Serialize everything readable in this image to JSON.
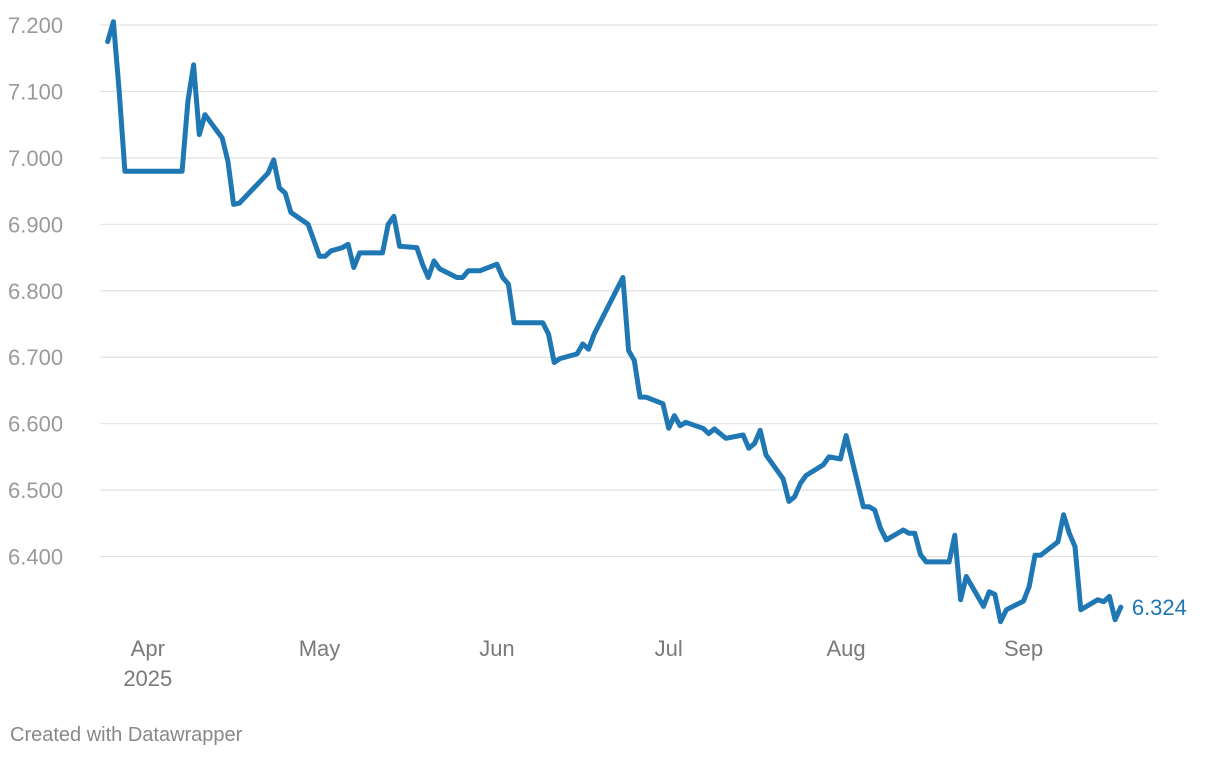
{
  "chart_data": {
    "type": "line",
    "title": "",
    "xlabel": "",
    "ylabel": "",
    "ylim": [
      6.3,
      7.2
    ],
    "xlim": [
      "2025-03-24",
      "2025-09-21"
    ],
    "grid": "horizontal",
    "y_ticks": [
      7.2,
      7.1,
      7.0,
      6.9,
      6.8,
      6.7,
      6.6,
      6.5,
      6.4
    ],
    "y_tick_labels": [
      "7.200",
      "7.100",
      "7.000",
      "6.900",
      "6.800",
      "6.700",
      "6.600",
      "6.500",
      "6.400"
    ],
    "x_ticks": [
      {
        "date": "2025-04-01",
        "label": "Apr",
        "sublabel": "2025"
      },
      {
        "date": "2025-05-01",
        "label": "May",
        "sublabel": ""
      },
      {
        "date": "2025-06-01",
        "label": "Jun",
        "sublabel": ""
      },
      {
        "date": "2025-07-01",
        "label": "Jul",
        "sublabel": ""
      },
      {
        "date": "2025-08-01",
        "label": "Aug",
        "sublabel": ""
      },
      {
        "date": "2025-09-01",
        "label": "Sep",
        "sublabel": ""
      }
    ],
    "series": [
      {
        "color": "#1f77b4",
        "end_label": "6.324",
        "points": [
          [
            "2025-03-25",
            7.175
          ],
          [
            "2025-03-26",
            7.205
          ],
          [
            "2025-03-27",
            7.1
          ],
          [
            "2025-03-28",
            6.98
          ],
          [
            "2025-04-07",
            6.98
          ],
          [
            "2025-04-08",
            7.085
          ],
          [
            "2025-04-09",
            7.14
          ],
          [
            "2025-04-10",
            7.035
          ],
          [
            "2025-04-11",
            7.065
          ],
          [
            "2025-04-14",
            7.03
          ],
          [
            "2025-04-15",
            6.995
          ],
          [
            "2025-04-16",
            6.93
          ],
          [
            "2025-04-17",
            6.932
          ],
          [
            "2025-04-22",
            6.977
          ],
          [
            "2025-04-23",
            6.997
          ],
          [
            "2025-04-24",
            6.955
          ],
          [
            "2025-04-25",
            6.947
          ],
          [
            "2025-04-26",
            6.918
          ],
          [
            "2025-04-29",
            6.9
          ],
          [
            "2025-05-01",
            6.852
          ],
          [
            "2025-05-02",
            6.852
          ],
          [
            "2025-05-03",
            6.86
          ],
          [
            "2025-05-05",
            6.865
          ],
          [
            "2025-05-06",
            6.87
          ],
          [
            "2025-05-07",
            6.835
          ],
          [
            "2025-05-08",
            6.857
          ],
          [
            "2025-05-12",
            6.857
          ],
          [
            "2025-05-13",
            6.9
          ],
          [
            "2025-05-14",
            6.912
          ],
          [
            "2025-05-15",
            6.867
          ],
          [
            "2025-05-18",
            6.865
          ],
          [
            "2025-05-19",
            6.84
          ],
          [
            "2025-05-20",
            6.82
          ],
          [
            "2025-05-21",
            6.845
          ],
          [
            "2025-05-22",
            6.833
          ],
          [
            "2025-05-25",
            6.82
          ],
          [
            "2025-05-26",
            6.82
          ],
          [
            "2025-05-27",
            6.83
          ],
          [
            "2025-05-29",
            6.83
          ],
          [
            "2025-06-01",
            6.84
          ],
          [
            "2025-06-02",
            6.82
          ],
          [
            "2025-06-03",
            6.81
          ],
          [
            "2025-06-04",
            6.752
          ],
          [
            "2025-06-09",
            6.752
          ],
          [
            "2025-06-10",
            6.735
          ],
          [
            "2025-06-11",
            6.692
          ],
          [
            "2025-06-12",
            6.698
          ],
          [
            "2025-06-15",
            6.705
          ],
          [
            "2025-06-16",
            6.72
          ],
          [
            "2025-06-17",
            6.712
          ],
          [
            "2025-06-18",
            6.735
          ],
          [
            "2025-06-23",
            6.82
          ],
          [
            "2025-06-24",
            6.71
          ],
          [
            "2025-06-25",
            6.695
          ],
          [
            "2025-06-26",
            6.64
          ],
          [
            "2025-06-27",
            6.64
          ],
          [
            "2025-06-30",
            6.63
          ],
          [
            "2025-07-01",
            6.593
          ],
          [
            "2025-07-02",
            6.612
          ],
          [
            "2025-07-03",
            6.597
          ],
          [
            "2025-07-04",
            6.602
          ],
          [
            "2025-07-07",
            6.593
          ],
          [
            "2025-07-08",
            6.585
          ],
          [
            "2025-07-09",
            6.592
          ],
          [
            "2025-07-11",
            6.578
          ],
          [
            "2025-07-14",
            6.583
          ],
          [
            "2025-07-15",
            6.563
          ],
          [
            "2025-07-16",
            6.57
          ],
          [
            "2025-07-17",
            6.59
          ],
          [
            "2025-07-18",
            6.553
          ],
          [
            "2025-07-21",
            6.517
          ],
          [
            "2025-07-22",
            6.483
          ],
          [
            "2025-07-23",
            6.49
          ],
          [
            "2025-07-24",
            6.51
          ],
          [
            "2025-07-25",
            6.522
          ],
          [
            "2025-07-28",
            6.538
          ],
          [
            "2025-07-29",
            6.55
          ],
          [
            "2025-07-31",
            6.547
          ],
          [
            "2025-08-01",
            6.582
          ],
          [
            "2025-08-04",
            6.475
          ],
          [
            "2025-08-05",
            6.475
          ],
          [
            "2025-08-06",
            6.47
          ],
          [
            "2025-08-07",
            6.443
          ],
          [
            "2025-08-08",
            6.425
          ],
          [
            "2025-08-11",
            6.44
          ],
          [
            "2025-08-12",
            6.435
          ],
          [
            "2025-08-13",
            6.435
          ],
          [
            "2025-08-14",
            6.403
          ],
          [
            "2025-08-15",
            6.392
          ],
          [
            "2025-08-19",
            6.392
          ],
          [
            "2025-08-20",
            6.432
          ],
          [
            "2025-08-21",
            6.335
          ],
          [
            "2025-08-22",
            6.37
          ],
          [
            "2025-08-25",
            6.325
          ],
          [
            "2025-08-26",
            6.347
          ],
          [
            "2025-08-27",
            6.343
          ],
          [
            "2025-08-28",
            6.302
          ],
          [
            "2025-08-29",
            6.32
          ],
          [
            "2025-09-01",
            6.333
          ],
          [
            "2025-09-02",
            6.355
          ],
          [
            "2025-09-03",
            6.402
          ],
          [
            "2025-09-04",
            6.402
          ],
          [
            "2025-09-07",
            6.422
          ],
          [
            "2025-09-08",
            6.463
          ],
          [
            "2025-09-09",
            6.435
          ],
          [
            "2025-09-10",
            6.415
          ],
          [
            "2025-09-11",
            6.32
          ],
          [
            "2025-09-14",
            6.335
          ],
          [
            "2025-09-15",
            6.332
          ],
          [
            "2025-09-16",
            6.34
          ],
          [
            "2025-09-17",
            6.305
          ],
          [
            "2025-09-18",
            6.324
          ]
        ]
      }
    ]
  },
  "footer": {
    "credit": "Created with Datawrapper"
  }
}
